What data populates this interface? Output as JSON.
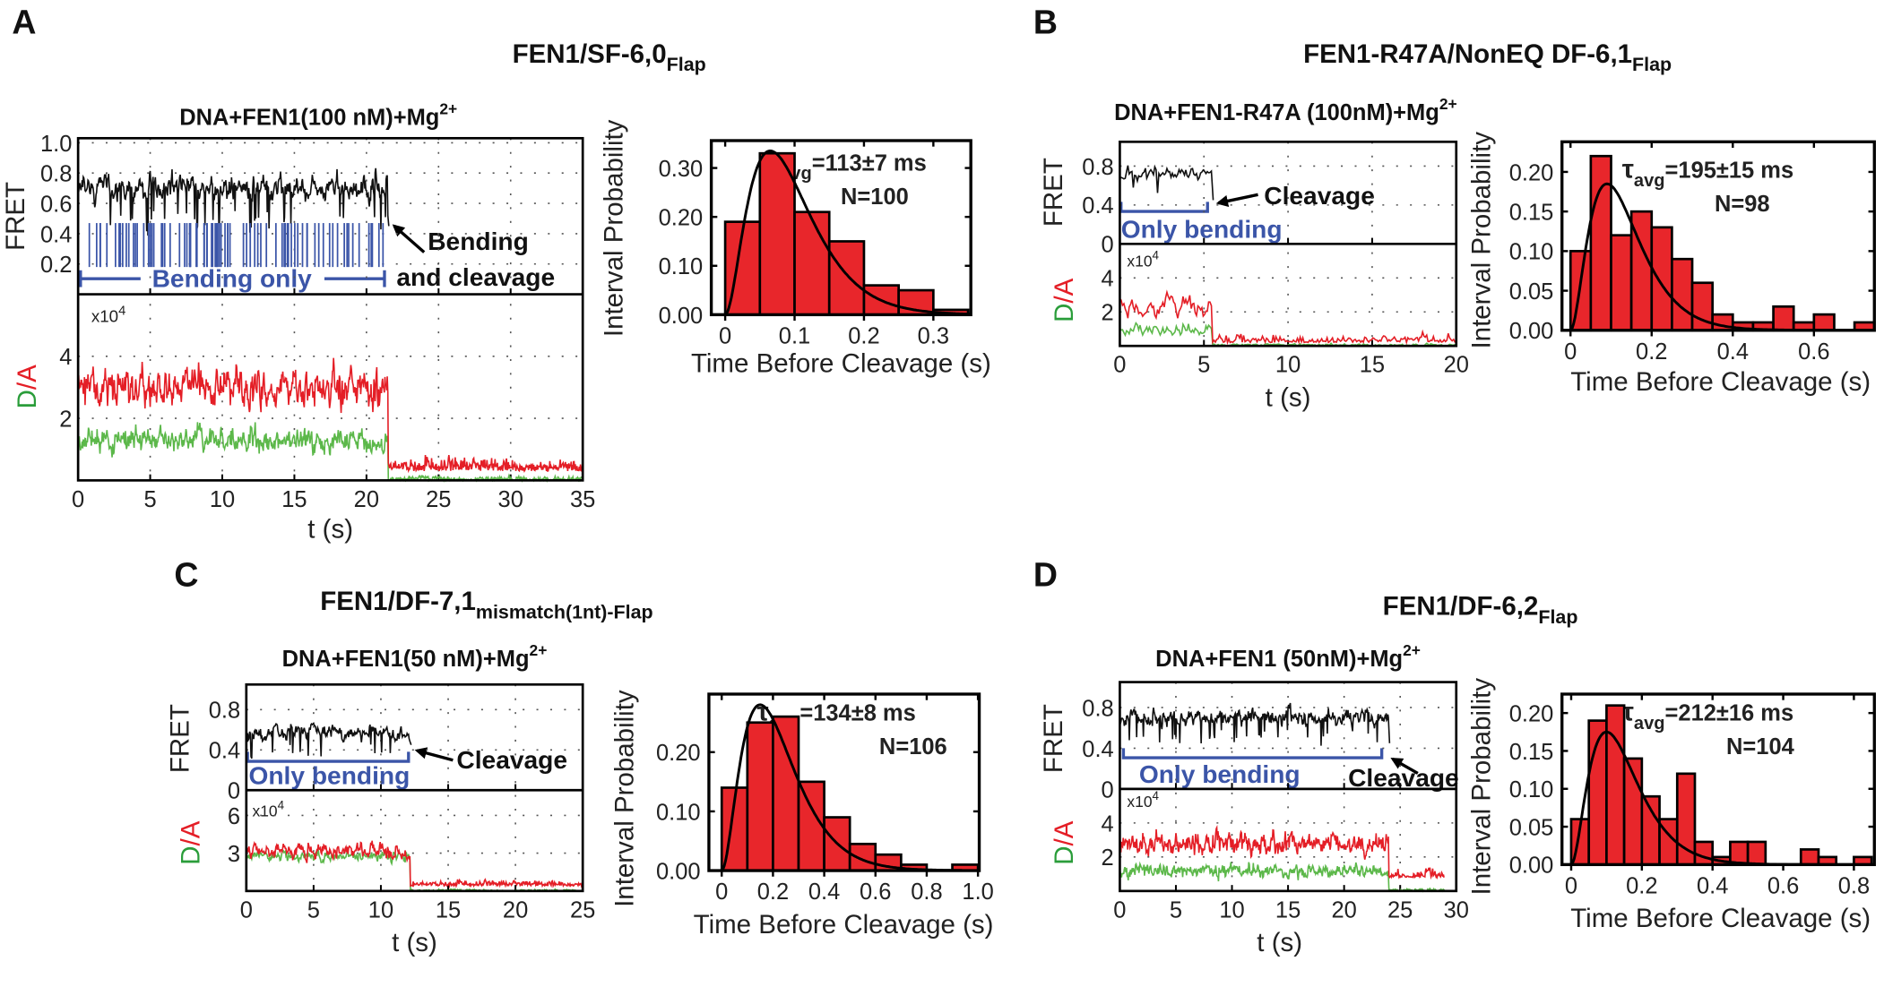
{
  "colors": {
    "acceptor": "#e41e26",
    "donor": "#5cb84a",
    "fret": "#111111",
    "bracket": "#3b55a8",
    "bar": "#e8262b"
  },
  "panels": [
    {
      "letter": "A",
      "title": "FEN1/SF-6,0",
      "title_sub": "Flap",
      "subtitle": "DNA+FEN1(100 nM)+Mg",
      "subtitle_sup": "2+",
      "trace": {
        "fret_label": "FRET",
        "da_label_d": "D",
        "da_label_a": "/A",
        "multiplier": "x10",
        "multiplier_exp": "4",
        "xlabel": "t (s)",
        "xlim": [
          0,
          35
        ],
        "xticks": [
          0,
          5,
          10,
          15,
          20,
          25,
          30,
          35
        ],
        "fret_ylim": [
          0,
          1.03
        ],
        "fret_yticks": [
          0.2,
          0.4,
          0.6,
          0.8,
          1.0
        ],
        "fret_yticklabels": [
          "0.2",
          "0.4",
          "0.6",
          "0.8",
          "1.0"
        ],
        "da_ylim": [
          0,
          6
        ],
        "da_yticks": [
          2,
          4
        ],
        "da_yticklabels": [
          "2",
          "4"
        ],
        "cleavage_time_s": 21.5
      },
      "annotations": {
        "bracket": "Bending only",
        "arrow_line1": "Bending",
        "arrow_line2": "and cleavage"
      }
    },
    {
      "letter": "B",
      "title": "FEN1-R47A/NonEQ DF-6,1",
      "title_sub": "Flap",
      "subtitle": "DNA+FEN1-R47A (100nM)+Mg",
      "subtitle_sup": "2+",
      "trace": {
        "fret_label": "FRET",
        "da_label_d": "D",
        "da_label_a": "/A",
        "multiplier": "x10",
        "multiplier_exp": "4",
        "xlabel": "t (s)",
        "xlim": [
          0,
          20
        ],
        "xticks": [
          0,
          5,
          10,
          15,
          20
        ],
        "fret_ylim": [
          0,
          1.05
        ],
        "fret_yticks": [
          0,
          0.4,
          0.8
        ],
        "fret_yticklabels": [
          "0",
          "0.4",
          "0.8"
        ],
        "da_ylim": [
          0,
          6
        ],
        "da_yticks": [
          2,
          4
        ],
        "da_yticklabels": [
          "2",
          "4"
        ],
        "cleavage_time_s": 5.5
      },
      "annotations": {
        "bracket": "Only bending",
        "arrow_line1": "Cleavage"
      }
    },
    {
      "letter": "C",
      "title": "FEN1/DF-7,1",
      "title_sub": "mismatch(1nt)-Flap",
      "subtitle": "DNA+FEN1(50 nM)+Mg",
      "subtitle_sup": "2+",
      "trace": {
        "fret_label": "FRET",
        "da_label_d": "D",
        "da_label_a": "/A",
        "multiplier": "x10",
        "multiplier_exp": "4",
        "xlabel": "t (s)",
        "xlim": [
          0,
          25
        ],
        "xticks": [
          0,
          5,
          10,
          15,
          20,
          25
        ],
        "fret_ylim": [
          0,
          1.05
        ],
        "fret_yticks": [
          0,
          0.4,
          0.8
        ],
        "fret_yticklabels": [
          "0",
          "0.4",
          "0.8"
        ],
        "da_ylim": [
          0,
          8
        ],
        "da_yticks": [
          3,
          6
        ],
        "da_yticklabels": [
          "3",
          "6"
        ],
        "cleavage_time_s": 12.2
      },
      "annotations": {
        "bracket": "Only bending",
        "arrow_line1": "Cleavage"
      }
    },
    {
      "letter": "D",
      "title": "FEN1/DF-6,2",
      "title_sub": "Flap",
      "subtitle": "DNA+FEN1 (50nM)+Mg",
      "subtitle_sup": "2+",
      "trace": {
        "fret_label": "FRET",
        "da_label_d": "D",
        "da_label_a": "/A",
        "multiplier": "x10",
        "multiplier_exp": "4",
        "xlabel": "t (s)",
        "xlim": [
          0,
          30
        ],
        "xticks": [
          0,
          5,
          10,
          15,
          20,
          25,
          30
        ],
        "fret_ylim": [
          0,
          1.05
        ],
        "fret_yticks": [
          0,
          0.4,
          0.8
        ],
        "fret_yticklabels": [
          "0",
          "0.4",
          "0.8"
        ],
        "da_ylim": [
          0,
          6
        ],
        "da_yticks": [
          2,
          4
        ],
        "da_yticklabels": [
          "2",
          "4"
        ],
        "cleavage_time_s": 24.0
      },
      "annotations": {
        "bracket": "Only bending",
        "arrow_line1": "Cleavage"
      }
    }
  ],
  "chart_data": [
    {
      "type": "bar",
      "panel": "A",
      "xlabel": "Time Before Cleavage (s)",
      "ylabel": "Interval Probability",
      "bin_start": 0,
      "bin_width": 0.05,
      "values": [
        0.19,
        0.33,
        0.21,
        0.15,
        0.06,
        0.05,
        0.01
      ],
      "xlim": [
        -0.02,
        0.354
      ],
      "ylim": [
        0,
        0.356
      ],
      "xticks": [
        0,
        0.1,
        0.2,
        0.3
      ],
      "xticklabels": [
        "0",
        "0.1",
        "0.2",
        "0.3"
      ],
      "yticks": [
        0,
        0.1,
        0.2,
        0.3
      ],
      "yticklabels": [
        "0.00",
        "0.10",
        "0.20",
        "0.30"
      ],
      "fit_peak": [
        0.065,
        0.335
      ],
      "tau_symbol": "τ",
      "tau_sub": "avg",
      "tau_value": "=113±7 ms",
      "n_label": "N=100"
    },
    {
      "type": "bar",
      "panel": "B",
      "xlabel": "Time Before Cleavage (s)",
      "ylabel": "Interval Probability",
      "bin_start": 0,
      "bin_width": 0.05,
      "values": [
        0.1,
        0.22,
        0.12,
        0.15,
        0.13,
        0.09,
        0.06,
        0.02,
        0.01,
        0.01,
        0.03,
        0.01,
        0.02,
        0.0,
        0.01
      ],
      "xlim": [
        -0.021,
        0.749
      ],
      "ylim": [
        0,
        0.238
      ],
      "xticks": [
        0,
        0.2,
        0.4,
        0.6
      ],
      "xticklabels": [
        "0",
        "0.2",
        "0.4",
        "0.6"
      ],
      "yticks": [
        0,
        0.05,
        0.1,
        0.15,
        0.2
      ],
      "yticklabels": [
        "0.00",
        "0.05",
        "0.10",
        "0.15",
        "0.20"
      ],
      "fit_peak": [
        0.09,
        0.185
      ],
      "tau_symbol": "τ",
      "tau_sub": "avg",
      "tau_value": "=195±15 ms",
      "n_label": "N=98"
    },
    {
      "type": "bar",
      "panel": "C",
      "xlabel": "Time Before Cleavage (s)",
      "ylabel": "Interval Probability",
      "bin_start": 0,
      "bin_width": 0.1,
      "values": [
        0.14,
        0.25,
        0.26,
        0.15,
        0.09,
        0.045,
        0.027,
        0.01,
        0.0,
        0.01
      ],
      "xlim": [
        -0.05,
        1.005
      ],
      "ylim": [
        0,
        0.298
      ],
      "xticks": [
        0,
        0.2,
        0.4,
        0.6,
        0.8,
        1.0
      ],
      "xticklabels": [
        "0",
        "0.2",
        "0.4",
        "0.6",
        "0.8",
        "1.0"
      ],
      "yticks": [
        0,
        0.1,
        0.2
      ],
      "yticklabels": [
        "0.00",
        "0.10",
        "0.20"
      ],
      "fit_peak": [
        0.15,
        0.28
      ],
      "tau_symbol": "τ",
      "tau_sub": "avg",
      "tau_value": "=134±8 ms",
      "n_label": "N=106"
    },
    {
      "type": "bar",
      "panel": "D",
      "xlabel": "Time Before Cleavage (s)",
      "ylabel": "Interval Probability",
      "bin_start": 0,
      "bin_width": 0.05,
      "values": [
        0.06,
        0.19,
        0.21,
        0.14,
        0.09,
        0.06,
        0.12,
        0.03,
        0.01,
        0.03,
        0.03,
        0.0,
        0.0,
        0.02,
        0.01,
        0.0,
        0.01
      ],
      "xlim": [
        -0.026,
        0.858
      ],
      "ylim": [
        0,
        0.225
      ],
      "xticks": [
        0,
        0.2,
        0.4,
        0.6,
        0.8
      ],
      "xticklabels": [
        "0",
        "0.2",
        "0.4",
        "0.6",
        "0.8"
      ],
      "yticks": [
        0,
        0.05,
        0.1,
        0.15,
        0.2
      ],
      "yticklabels": [
        "0.00",
        "0.05",
        "0.10",
        "0.15",
        "0.20"
      ],
      "fit_peak": [
        0.1,
        0.175
      ],
      "tau_symbol": "τ",
      "tau_sub": "avg",
      "tau_value": "=212±16 ms",
      "n_label": "N=104"
    }
  ]
}
